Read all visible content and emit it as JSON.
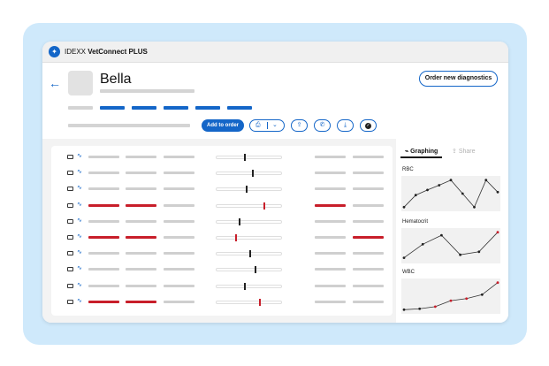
{
  "app": {
    "brand": "IDEXX",
    "product": "VetConnect PLUS",
    "logo_icon": "idexx-logo-icon"
  },
  "patient": {
    "name": "Bella"
  },
  "header": {
    "order_button_label": "Order new diagnostics",
    "add_to_order_label": "Add to order",
    "toolbar_icons": [
      "print-icon",
      "chevron-down-icon",
      "share-icon",
      "phone-icon",
      "download-icon",
      "check-icon"
    ]
  },
  "results": {
    "rows": [
      {
        "flagged": false,
        "level": 0.43,
        "alert_high": false
      },
      {
        "flagged": false,
        "level": 0.56,
        "alert_high": false
      },
      {
        "flagged": false,
        "level": 0.46,
        "alert_high": false
      },
      {
        "flagged": true,
        "level": 0.74,
        "alert_high": true
      },
      {
        "flagged": false,
        "level": 0.35,
        "alert_high": false
      },
      {
        "flagged": true,
        "level": 0.29,
        "alert_high": true
      },
      {
        "flagged": false,
        "level": 0.52,
        "alert_high": false
      },
      {
        "flagged": false,
        "level": 0.6,
        "alert_high": false
      },
      {
        "flagged": false,
        "level": 0.44,
        "alert_high": false
      },
      {
        "flagged": true,
        "level": 0.68,
        "alert_high": true
      }
    ]
  },
  "side_panel": {
    "tabs": [
      {
        "label": "Graphing",
        "active": true
      },
      {
        "label": "Share",
        "active": false
      }
    ],
    "share_icon": "share-icon",
    "graphs": [
      {
        "label": "RBC",
        "points": [
          0.05,
          0.45,
          0.62,
          0.78,
          0.95,
          0.5,
          0.05,
          0.95,
          0.55
        ],
        "red_points": []
      },
      {
        "label": "Hematocrit",
        "points": [
          0.1,
          0.55,
          0.85,
          0.2,
          0.3,
          0.95
        ],
        "red_points": [
          5
        ]
      },
      {
        "label": "WBC",
        "points": [
          0.05,
          0.08,
          0.15,
          0.35,
          0.42,
          0.55,
          0.95
        ],
        "red_points": [
          2,
          3,
          4,
          6
        ]
      }
    ]
  },
  "colors": {
    "accent": "#1466c8",
    "alert": "#c81e2a",
    "frame": "#cfe9fb"
  }
}
